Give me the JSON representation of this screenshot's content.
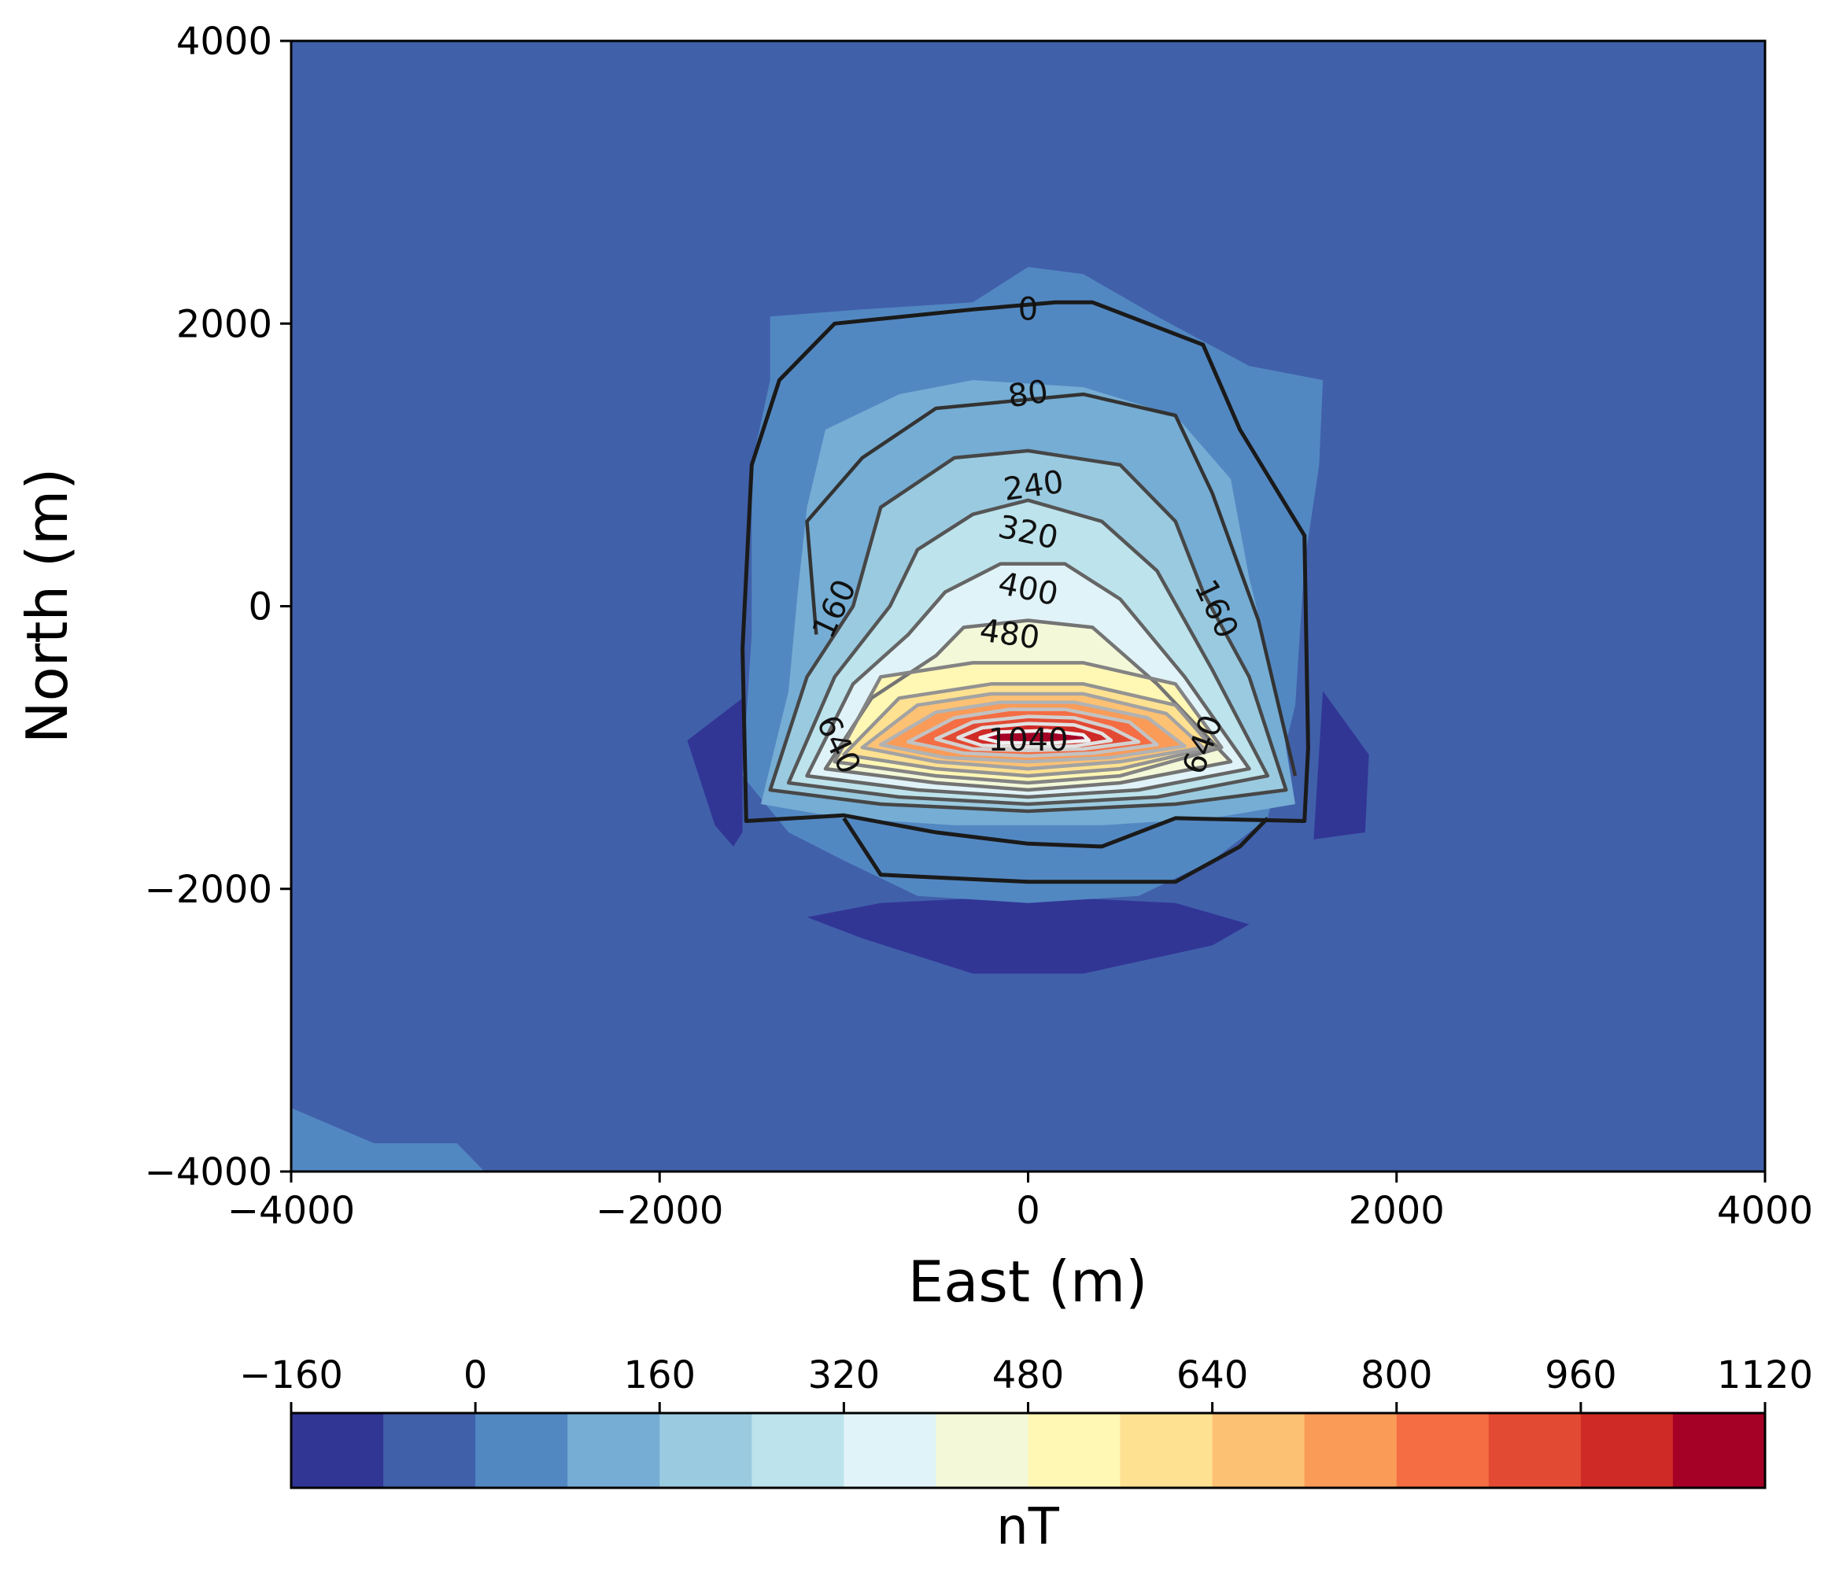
{
  "chart_data": {
    "type": "heatmap",
    "subtype": "filled-contour",
    "title": "",
    "xlabel": "East (m)",
    "ylabel": "North (m)",
    "xlim": [
      -4000,
      4000
    ],
    "ylim": [
      -4000,
      4000
    ],
    "x_ticks": [
      -4000,
      -2000,
      0,
      2000,
      4000
    ],
    "y_ticks": [
      -4000,
      -2000,
      0,
      2000,
      4000
    ],
    "x_tick_labels": [
      "−4000",
      "−2000",
      "0",
      "2000",
      "4000"
    ],
    "y_tick_labels": [
      "−4000",
      "−2000",
      "0",
      "2000",
      "4000"
    ],
    "grid": false,
    "anomaly_center": [
      0,
      -900
    ],
    "peak_value": 1040,
    "colorbar": {
      "label": "nT",
      "orientation": "horizontal",
      "position": "bottom",
      "levels": [
        -160,
        -80,
        0,
        80,
        160,
        240,
        320,
        400,
        480,
        560,
        640,
        720,
        800,
        880,
        960,
        1040,
        1120
      ],
      "tick_values": [
        -160,
        0,
        160,
        320,
        480,
        640,
        800,
        960,
        1120
      ],
      "tick_labels": [
        "−160",
        "0",
        "160",
        "320",
        "480",
        "640",
        "800",
        "960",
        "1120"
      ],
      "colors": [
        "#313695",
        "#4160aa",
        "#5288c2",
        "#75add4",
        "#9acae0",
        "#bde3ec",
        "#e0f3f8",
        "#f3f9d8",
        "#fff7b4",
        "#fee191",
        "#fdc173",
        "#fa9b58",
        "#f46d43",
        "#e34a33",
        "#cf2a26",
        "#a50026"
      ]
    },
    "contour_labels": [
      {
        "text": "0",
        "x": 0,
        "y": 2100,
        "rotation": 0
      },
      {
        "text": "80",
        "x": 0,
        "y": 1500,
        "rotation": -8
      },
      {
        "text": "240",
        "x": 30,
        "y": 850,
        "rotation": -8
      },
      {
        "text": "320",
        "x": 0,
        "y": 520,
        "rotation": 12
      },
      {
        "text": "400",
        "x": 0,
        "y": 120,
        "rotation": 12
      },
      {
        "text": "480",
        "x": -100,
        "y": -200,
        "rotation": 8
      },
      {
        "text": "160",
        "x": -1050,
        "y": -20,
        "rotation": -65
      },
      {
        "text": "160",
        "x": 1020,
        "y": -20,
        "rotation": 65
      },
      {
        "text": "640",
        "x": -1030,
        "y": -980,
        "rotation": 65
      },
      {
        "text": "640",
        "x": 950,
        "y": -980,
        "rotation": -70
      },
      {
        "text": "1040",
        "x": 0,
        "y": -950,
        "rotation": 0
      }
    ]
  }
}
